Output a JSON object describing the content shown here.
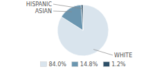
{
  "chart_data": {
    "type": "pie",
    "categories": [
      "WHITE",
      "ASIAN",
      "HISPANIC"
    ],
    "values": [
      84.0,
      14.8,
      1.2
    ],
    "value_labels": [
      "84.0%",
      "14.8%",
      "1.2%"
    ],
    "colors": [
      "#d9e4ed",
      "#6b96b0",
      "#2e5068"
    ],
    "legend": "bottom"
  }
}
